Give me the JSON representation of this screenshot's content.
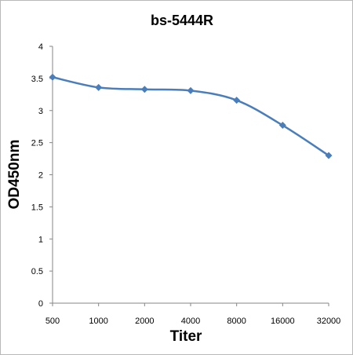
{
  "chart_data": {
    "type": "line",
    "title": "bs-5444R",
    "xlabel": "Titer",
    "ylabel": "OD450nm",
    "categories": [
      "500",
      "1000",
      "2000",
      "4000",
      "8000",
      "16000",
      "32000"
    ],
    "series": [
      {
        "values": [
          3.52,
          3.36,
          3.33,
          3.31,
          3.16,
          2.77,
          2.3
        ]
      }
    ],
    "ylim": [
      0,
      4
    ],
    "yticks": [
      "0",
      "0.5",
      "1",
      "1.5",
      "2",
      "2.5",
      "3",
      "3.5",
      "4"
    ],
    "grid": false,
    "legend": "none",
    "colors": {
      "line": "#4a7ebb",
      "marker": "#4a7ebb",
      "axis": "#868686"
    }
  }
}
